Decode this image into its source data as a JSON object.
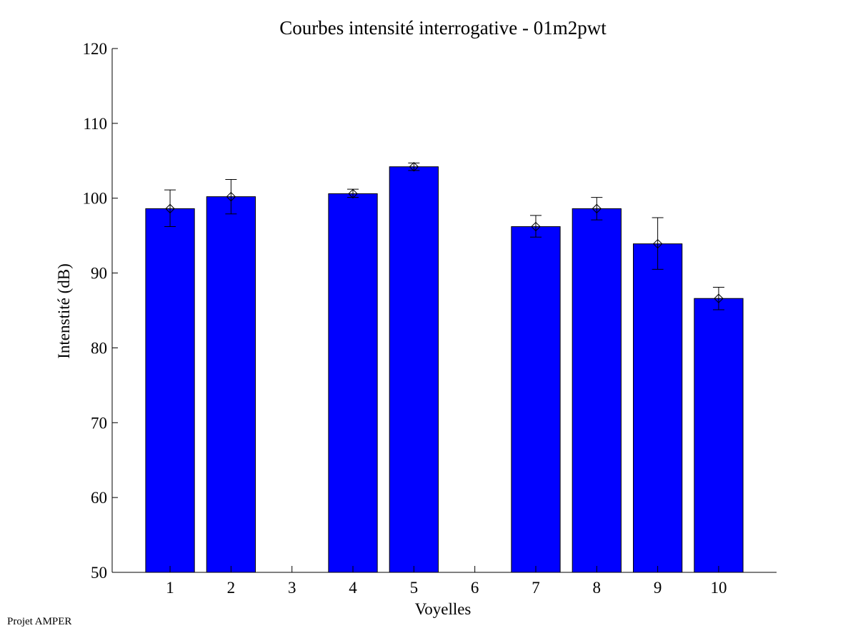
{
  "chart_data": {
    "type": "bar",
    "title": "Courbes intensité interrogative - 01m2pwt",
    "xlabel": "Voyelles",
    "ylabel": "Intenstité (dB)",
    "ylim": [
      50,
      120
    ],
    "yticks": [
      50,
      60,
      70,
      80,
      90,
      100,
      110,
      120
    ],
    "categories": [
      "1",
      "2",
      "3",
      "4",
      "5",
      "6",
      "7",
      "8",
      "9",
      "10"
    ],
    "values": [
      98.6,
      100.2,
      null,
      100.6,
      104.2,
      null,
      96.2,
      98.6,
      93.9,
      86.6
    ],
    "error_low": [
      96.2,
      97.9,
      null,
      100.1,
      103.7,
      null,
      94.8,
      97.1,
      90.5,
      85.1
    ],
    "error_high": [
      101.1,
      102.5,
      null,
      101.2,
      104.7,
      null,
      97.7,
      100.1,
      97.4,
      88.1
    ],
    "bar_color": "#0000ff",
    "grid": false,
    "legend": "none"
  },
  "footer": {
    "text": "Projet AMPER"
  }
}
